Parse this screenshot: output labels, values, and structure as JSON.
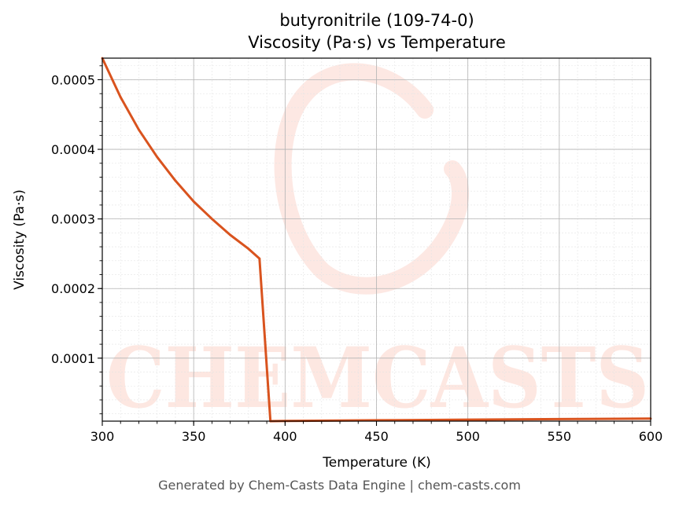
{
  "chart_data": {
    "type": "line",
    "title": "butyronitrile (109-74-0)",
    "subtitle": "Viscosity (Pa·s) vs Temperature",
    "xlabel": "Temperature (K)",
    "ylabel": "Viscosity (Pa·s)",
    "xlim": [
      300,
      600
    ],
    "ylim": [
      9.5e-06,
      0.000531
    ],
    "x_ticks": [
      "300",
      "350",
      "400",
      "450",
      "500",
      "550",
      "600"
    ],
    "y_ticks": [
      "0.0001",
      "0.0002",
      "0.0003",
      "0.0004",
      "0.0005"
    ],
    "grid": true,
    "series": [
      {
        "color": "#d9531e",
        "x": [
          300,
          310,
          320,
          330,
          340,
          350,
          360,
          370,
          380,
          386,
          392,
          400,
          450,
          500,
          550,
          600
        ],
        "y": [
          0.000531,
          0.000475,
          0.000428,
          0.000389,
          0.000355,
          0.000325,
          0.0003,
          0.000277,
          0.000257,
          0.000243,
          9.5e-06,
          9.8e-06,
          1.07e-05,
          1.16e-05,
          1.24e-05,
          1.32e-05
        ]
      }
    ]
  },
  "watermark": "CHEMCASTS",
  "footer": "Generated by Chem-Casts Data Engine | chem-casts.com"
}
